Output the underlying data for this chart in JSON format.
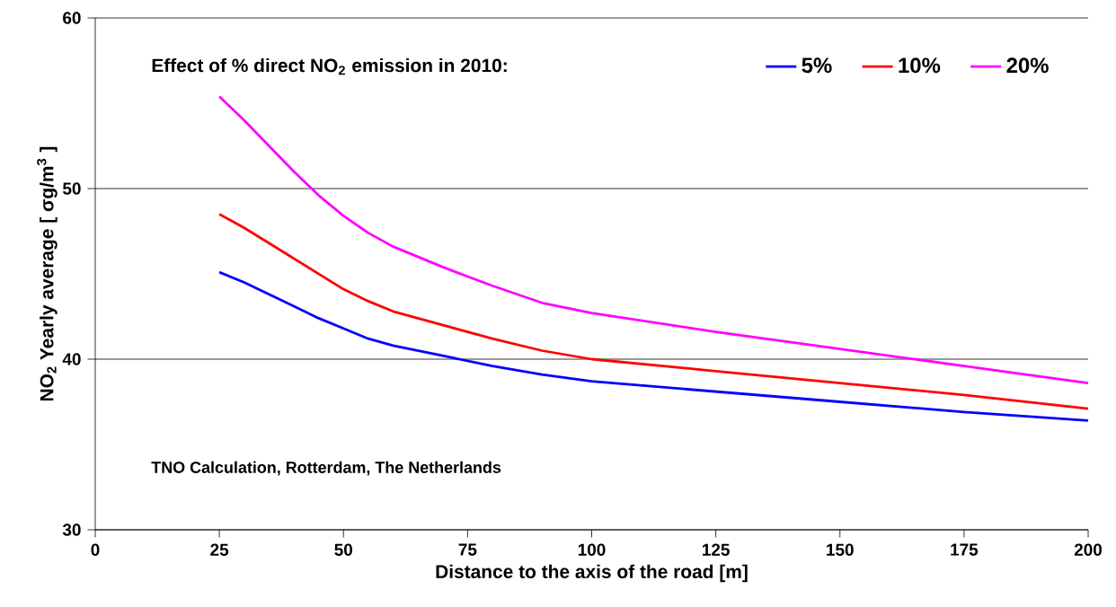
{
  "chart_data": {
    "type": "line",
    "xlabel": "Distance to the axis of the road [m]",
    "ylabel": "NO$_{2}$ Yearly average [ σg/m$^{3}$ ]",
    "legend_title": "Effect of % direct NO$_{2}$ emission in 2010:",
    "annotations": [
      "TNO Calculation, Rotterdam, The Netherlands"
    ],
    "x": [
      25,
      30,
      35,
      40,
      45,
      50,
      55,
      60,
      70,
      80,
      90,
      100,
      125,
      150,
      175,
      200
    ],
    "series": [
      {
        "name": "5%",
        "color": "#0000ff",
        "values": [
          45.1,
          44.5,
          43.8,
          43.1,
          42.4,
          41.8,
          41.2,
          40.8,
          40.2,
          39.6,
          39.1,
          38.7,
          38.1,
          37.5,
          36.9,
          36.4
        ]
      },
      {
        "name": "10%",
        "color": "#ff0000",
        "values": [
          48.5,
          47.7,
          46.8,
          45.9,
          45.0,
          44.1,
          43.4,
          42.8,
          42.0,
          41.2,
          40.5,
          40.0,
          39.3,
          38.6,
          37.9,
          37.1
        ]
      },
      {
        "name": "20%",
        "color": "#ff00ff",
        "values": [
          55.4,
          54.0,
          52.5,
          51.0,
          49.6,
          48.4,
          47.4,
          46.6,
          45.4,
          44.3,
          43.3,
          42.7,
          41.6,
          40.6,
          39.6,
          38.6
        ]
      }
    ],
    "xlim": [
      0,
      200
    ],
    "ylim": [
      30,
      60
    ],
    "xticks": [
      0,
      25,
      50,
      75,
      100,
      125,
      150,
      175,
      200
    ],
    "yticks": [
      30,
      40,
      50,
      60
    ],
    "grid": "y",
    "legend": "top right",
    "marker": "none",
    "line_style": "solid"
  }
}
